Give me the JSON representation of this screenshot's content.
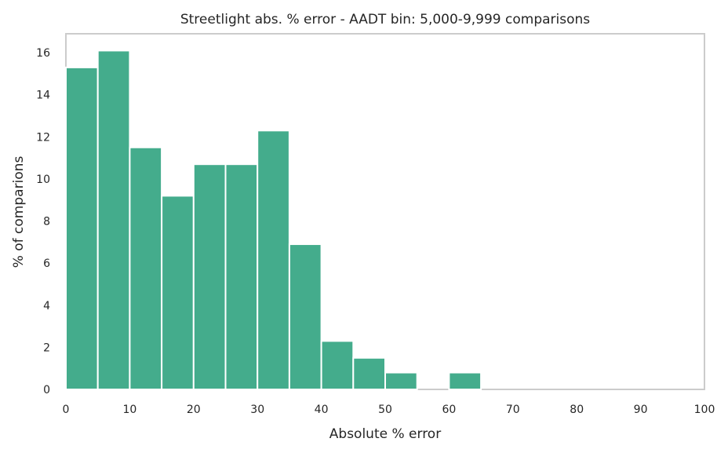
{
  "chart_data": {
    "type": "bar",
    "title": "Streetlight abs. % error - AADT bin: 5,000-9,999 comparisons",
    "xlabel": "Absolute % error",
    "ylabel": "% of comparions",
    "xlim": [
      0,
      100
    ],
    "ylim": [
      0,
      16.9
    ],
    "x_ticks": [
      0,
      10,
      20,
      30,
      40,
      50,
      60,
      70,
      80,
      90,
      100
    ],
    "y_ticks": [
      0,
      2,
      4,
      6,
      8,
      10,
      12,
      14,
      16
    ],
    "bin_width": 5,
    "bins": [
      {
        "x0": 0,
        "x1": 5,
        "value": 15.3
      },
      {
        "x0": 5,
        "x1": 10,
        "value": 16.1
      },
      {
        "x0": 10,
        "x1": 15,
        "value": 11.5
      },
      {
        "x0": 15,
        "x1": 20,
        "value": 9.2
      },
      {
        "x0": 20,
        "x1": 25,
        "value": 10.7
      },
      {
        "x0": 25,
        "x1": 30,
        "value": 10.7
      },
      {
        "x0": 30,
        "x1": 35,
        "value": 12.3
      },
      {
        "x0": 35,
        "x1": 40,
        "value": 6.9
      },
      {
        "x0": 40,
        "x1": 45,
        "value": 2.3
      },
      {
        "x0": 45,
        "x1": 50,
        "value": 1.5
      },
      {
        "x0": 50,
        "x1": 55,
        "value": 0.8
      },
      {
        "x0": 55,
        "x1": 60,
        "value": 0
      },
      {
        "x0": 60,
        "x1": 65,
        "value": 0.8
      }
    ],
    "bar_color": "#44AC8C",
    "grid": false
  }
}
